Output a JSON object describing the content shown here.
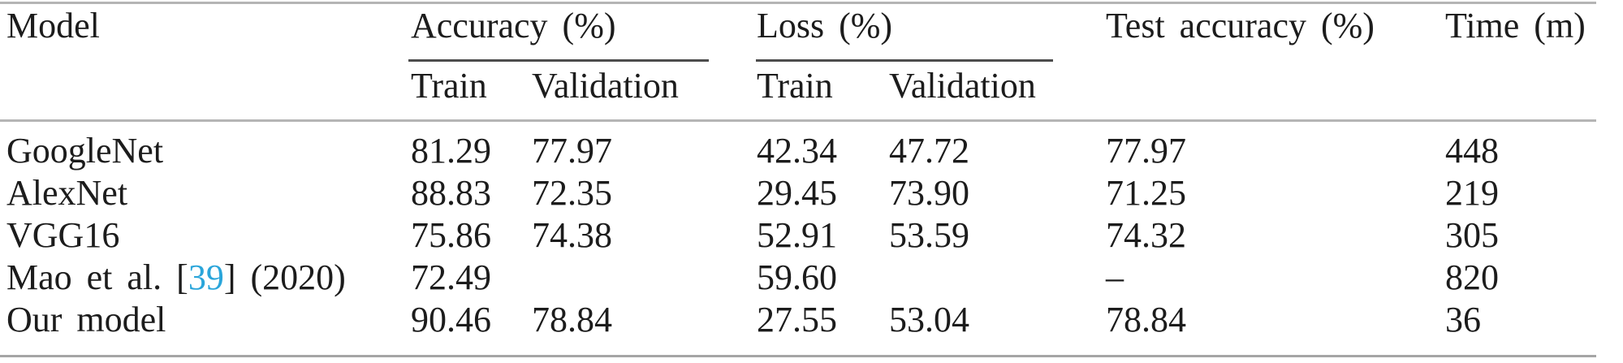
{
  "table": {
    "title_semantics": "Model training results comparison table",
    "colors": {
      "text": "#1c1c1c",
      "rule_light": "#b5b5b5",
      "rule_bottom": "#a5a5a5",
      "rule_dark": "#4d4d4d",
      "citation": "#2aa5da"
    },
    "header": {
      "model": "Model",
      "accuracy_group": "Accuracy (%)",
      "loss_group": "Loss (%)",
      "test_accuracy": "Test accuracy (%)",
      "time": "Time (m)",
      "sub_acc_train": "Train",
      "sub_acc_validation": "Validation",
      "sub_loss_train": "Train",
      "sub_loss_validation": "Validation"
    },
    "rows": [
      {
        "model": "GoogleNet",
        "acc_train": "81.29",
        "acc_val": "77.97",
        "loss_train": "42.34",
        "loss_val": "47.72",
        "test_acc": "77.97",
        "time": "448"
      },
      {
        "model": "AlexNet",
        "acc_train": "88.83",
        "acc_val": "72.35",
        "loss_train": "29.45",
        "loss_val": "73.90",
        "test_acc": "71.25",
        "time": "219"
      },
      {
        "model": "VGG16",
        "acc_train": "75.86",
        "acc_val": "74.38",
        "loss_train": "52.91",
        "loss_val": "53.59",
        "test_acc": "74.32",
        "time": "305"
      },
      {
        "model_prefix": "Mao et al. [",
        "citation": "39",
        "model_suffix": "] (2020)",
        "acc_train": "72.49",
        "acc_val": "",
        "loss_train": "59.60",
        "loss_val": "",
        "test_acc": "–",
        "time": "820"
      },
      {
        "model": "Our model",
        "acc_train": "90.46",
        "acc_val": "78.84",
        "loss_train": "27.55",
        "loss_val": "53.04",
        "test_acc": "78.84",
        "time": "36"
      }
    ]
  }
}
